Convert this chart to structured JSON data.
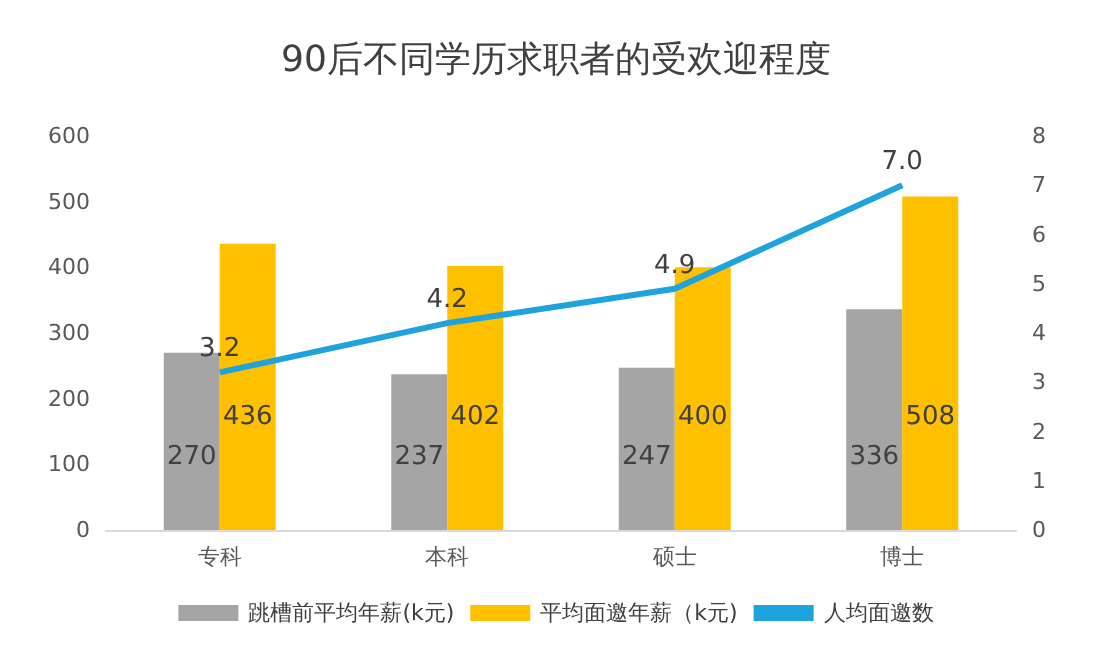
{
  "chart_data": {
    "type": "bar",
    "title": "90后不同学历求职者的受欢迎程度",
    "categories": [
      "专科",
      "本科",
      "硕士",
      "博士"
    ],
    "series": [
      {
        "name": "跳槽前平均年薪(k元)",
        "color": "#a5a5a5",
        "values": [
          270,
          237,
          247,
          336
        ],
        "value_labels": [
          "270",
          "237",
          "247",
          "336"
        ]
      },
      {
        "name": "平均面邀年薪（k元)",
        "color": "#ffc000",
        "values": [
          436,
          402,
          400,
          508
        ],
        "value_labels": [
          "436",
          "402",
          "400",
          "508"
        ]
      },
      {
        "name": "人均面邀数",
        "type": "line",
        "axis": "y2",
        "color": "#1fa3dc",
        "values": [
          3.2,
          4.2,
          4.9,
          7.0
        ],
        "value_labels": [
          "3.2",
          "4.2",
          "4.9",
          "7.0"
        ]
      }
    ],
    "ylim": [
      0,
      600
    ],
    "yticks": [
      0,
      100,
      200,
      300,
      400,
      500,
      600
    ],
    "y2lim": [
      0,
      8
    ],
    "y2ticks": [
      0,
      1,
      2,
      3,
      4,
      5,
      6,
      7,
      8
    ],
    "grid": false,
    "legend": "bottom",
    "marker": "none"
  }
}
